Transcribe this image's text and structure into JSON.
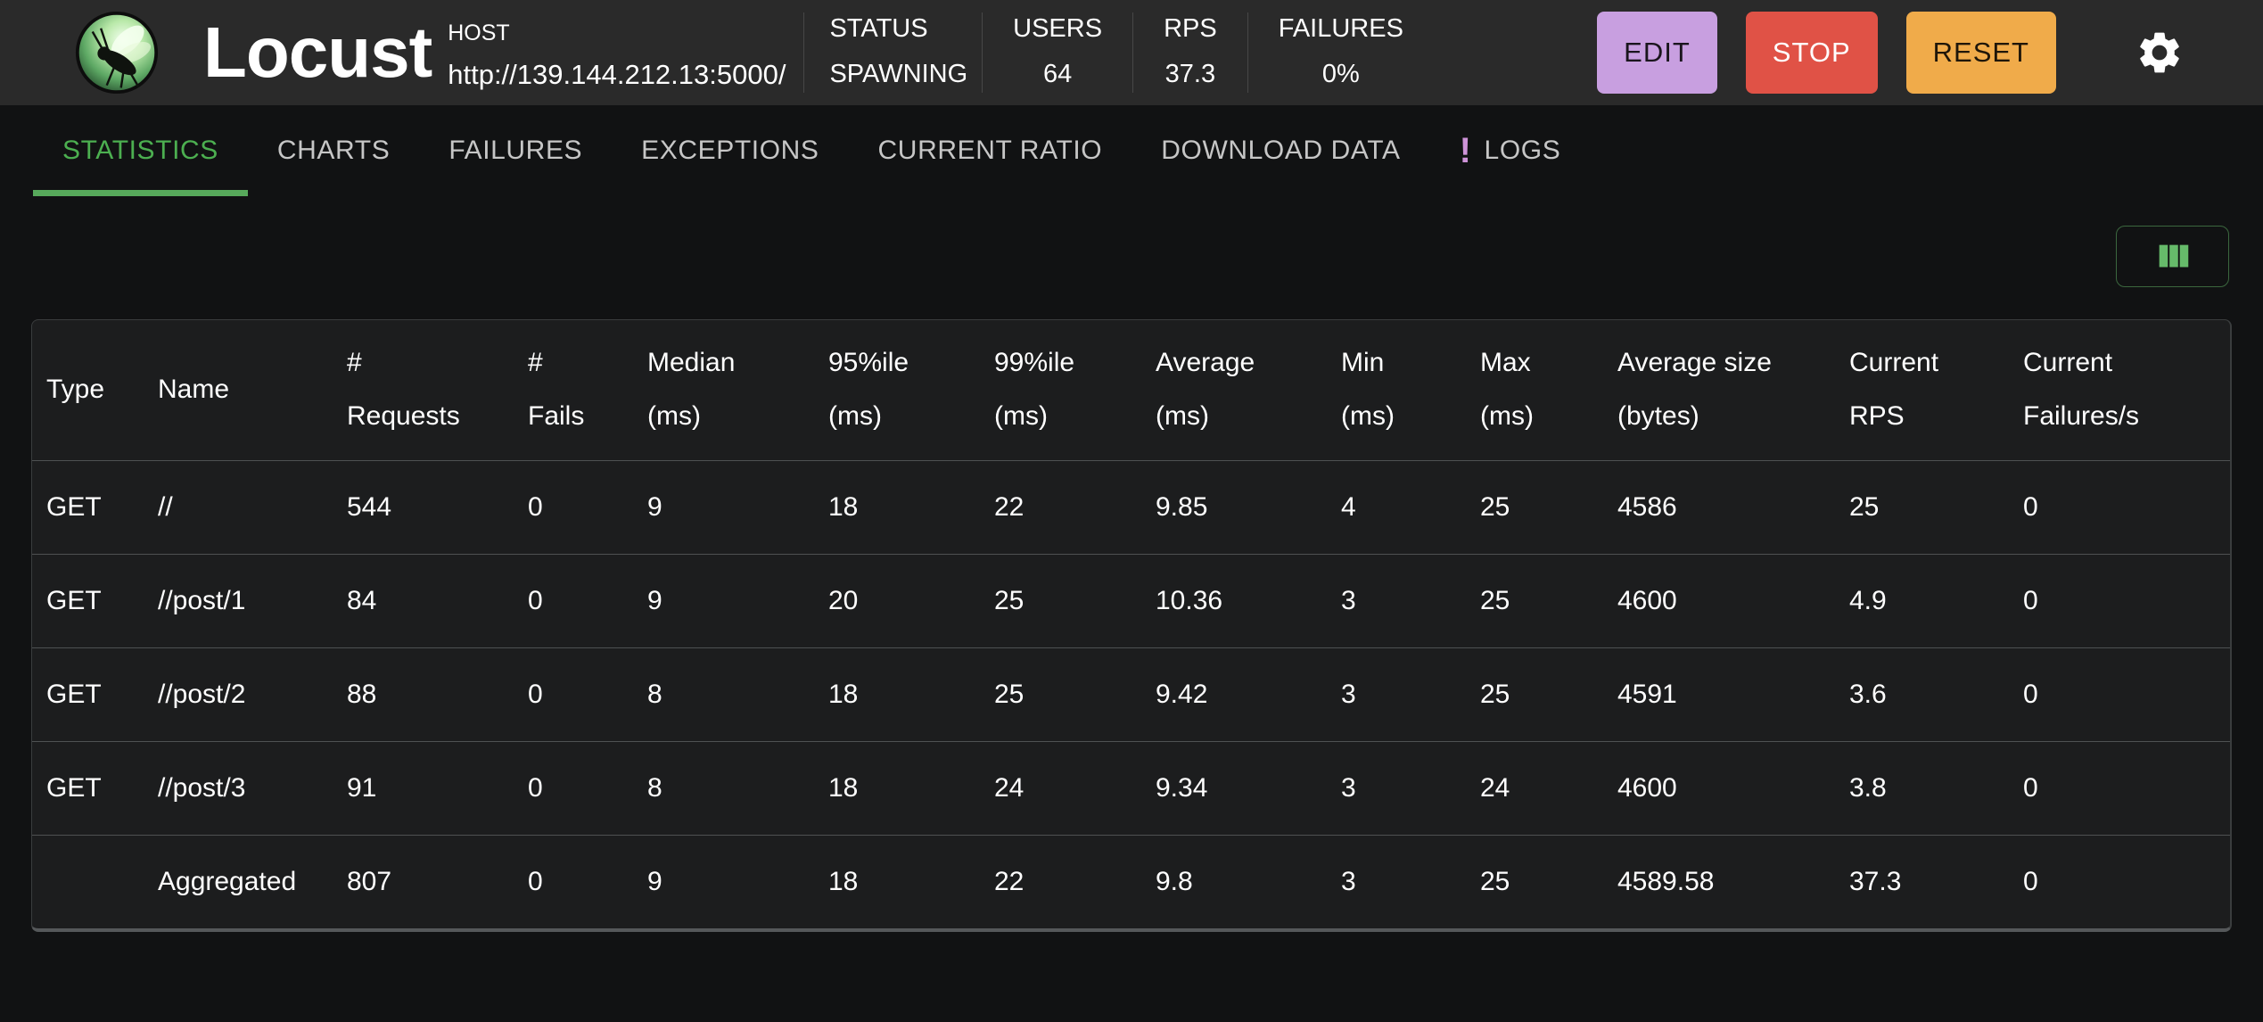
{
  "header": {
    "title": "Locust",
    "host_label": "HOST",
    "host_url": "http://139.144.212.13:5000/",
    "stats": [
      {
        "label": "STATUS",
        "value": "SPAWNING"
      },
      {
        "label": "USERS",
        "value": "64"
      },
      {
        "label": "RPS",
        "value": "37.3"
      },
      {
        "label": "FAILURES",
        "value": "0%"
      }
    ],
    "buttons": [
      {
        "label": "EDIT",
        "color": "#c89fe0",
        "text_color": "rgba(0,0,0,0.87)"
      },
      {
        "label": "STOP",
        "color": "#e05246",
        "text_color": "#ffffff"
      },
      {
        "label": "RESET",
        "color": "#f0ab4a",
        "text_color": "rgba(0,0,0,0.87)"
      }
    ],
    "settings_icon": "gear-icon"
  },
  "tabs": [
    {
      "label": "STATISTICS",
      "active": true
    },
    {
      "label": "CHARTS"
    },
    {
      "label": "FAILURES"
    },
    {
      "label": "EXCEPTIONS"
    },
    {
      "label": "CURRENT RATIO"
    },
    {
      "label": "DOWNLOAD DATA"
    },
    {
      "label": "LOGS",
      "badge": "!"
    }
  ],
  "toolbar": {
    "columns_icon": "view-columns-icon"
  },
  "table": {
    "columns": [
      "Type",
      "Name",
      "#\nRequests",
      "#\nFails",
      "Median\n(ms)",
      "95%ile\n(ms)",
      "99%ile\n(ms)",
      "Average\n(ms)",
      "Min\n(ms)",
      "Max\n(ms)",
      "Average size\n(bytes)",
      "Current\nRPS",
      "Current\nFailures/s"
    ],
    "rows": [
      [
        "GET",
        "//",
        "544",
        "0",
        "9",
        "18",
        "22",
        "9.85",
        "4",
        "25",
        "4586",
        "25",
        "0"
      ],
      [
        "GET",
        "//post/1",
        "84",
        "0",
        "9",
        "20",
        "25",
        "10.36",
        "3",
        "25",
        "4600",
        "4.9",
        "0"
      ],
      [
        "GET",
        "//post/2",
        "88",
        "0",
        "8",
        "18",
        "25",
        "9.42",
        "3",
        "25",
        "4591",
        "3.6",
        "0"
      ],
      [
        "GET",
        "//post/3",
        "91",
        "0",
        "8",
        "18",
        "24",
        "9.34",
        "3",
        "24",
        "4600",
        "3.8",
        "0"
      ],
      [
        "",
        "Aggregated",
        "807",
        "0",
        "9",
        "18",
        "22",
        "9.8",
        "3",
        "25",
        "4589.58",
        "37.3",
        "0"
      ]
    ]
  },
  "colors": {
    "header_bg": "#2a2a2a",
    "page_bg": "#111213",
    "card_bg": "#1c1d1e",
    "accent_green": "#4caf50",
    "badge_purple": "#ce93d8"
  }
}
